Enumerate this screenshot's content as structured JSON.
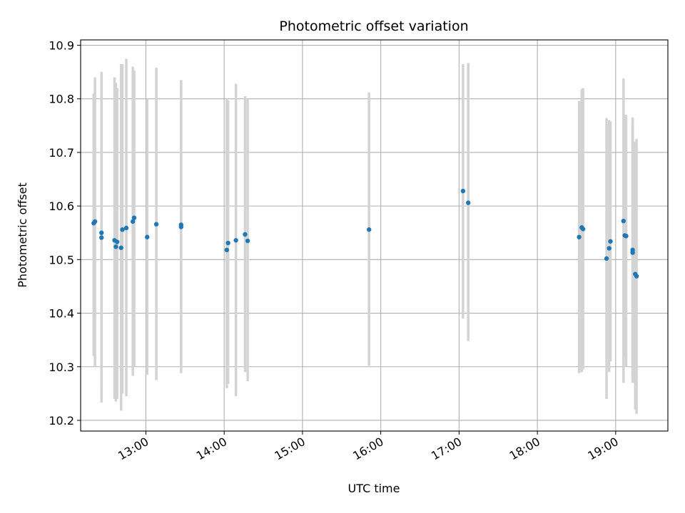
{
  "chart_data": {
    "type": "scatter",
    "title": "Photometric offset variation",
    "xlabel": "UTC time",
    "ylabel": "Photometric offset",
    "xlim": [
      "12:10",
      "19:40"
    ],
    "ylim": [
      10.18,
      10.91
    ],
    "x_ticks": [
      "13:00",
      "14:00",
      "15:00",
      "16:00",
      "17:00",
      "18:00",
      "19:00"
    ],
    "y_ticks": [
      "10.2",
      "10.3",
      "10.4",
      "10.5",
      "10.6",
      "10.7",
      "10.8",
      "10.9"
    ],
    "grid": true,
    "colors": {
      "points": "#1f77b4",
      "error_bars": "#d3d3d3"
    },
    "points": [
      {
        "x": "12:20",
        "y": 10.568,
        "ylow": 10.32,
        "yhigh": 10.81
      },
      {
        "x": "12:21",
        "y": 10.571,
        "ylow": 10.3,
        "yhigh": 10.84
      },
      {
        "x": "12:26",
        "y": 10.55,
        "ylow": 10.26,
        "yhigh": 10.85
      },
      {
        "x": "12:26",
        "y": 10.541,
        "ylow": 10.233,
        "yhigh": 10.85
      },
      {
        "x": "12:36",
        "y": 10.536,
        "ylow": 10.24,
        "yhigh": 10.84
      },
      {
        "x": "12:37",
        "y": 10.524,
        "ylow": 10.235,
        "yhigh": 10.83
      },
      {
        "x": "12:38",
        "y": 10.533,
        "ylow": 10.24,
        "yhigh": 10.82
      },
      {
        "x": "12:41",
        "y": 10.522,
        "ylow": 10.218,
        "yhigh": 10.865
      },
      {
        "x": "12:42",
        "y": 10.556,
        "ylow": 10.25,
        "yhigh": 10.865
      },
      {
        "x": "12:45",
        "y": 10.559,
        "ylow": 10.245,
        "yhigh": 10.875
      },
      {
        "x": "12:50",
        "y": 10.571,
        "ylow": 10.283,
        "yhigh": 10.86
      },
      {
        "x": "12:51",
        "y": 10.578,
        "ylow": 10.3,
        "yhigh": 10.853
      },
      {
        "x": "13:01",
        "y": 10.542,
        "ylow": 10.285,
        "yhigh": 10.8
      },
      {
        "x": "13:08",
        "y": 10.566,
        "ylow": 10.275,
        "yhigh": 10.858
      },
      {
        "x": "13:27",
        "y": 10.561,
        "ylow": 10.288,
        "yhigh": 10.835
      },
      {
        "x": "13:27",
        "y": 10.565,
        "ylow": 10.295,
        "yhigh": 10.835
      },
      {
        "x": "14:02",
        "y": 10.518,
        "ylow": 10.26,
        "yhigh": 10.8
      },
      {
        "x": "14:03",
        "y": 10.531,
        "ylow": 10.268,
        "yhigh": 10.797
      },
      {
        "x": "14:09",
        "y": 10.536,
        "ylow": 10.245,
        "yhigh": 10.828
      },
      {
        "x": "14:16",
        "y": 10.547,
        "ylow": 10.29,
        "yhigh": 10.805
      },
      {
        "x": "14:18",
        "y": 10.535,
        "ylow": 10.273,
        "yhigh": 10.8
      },
      {
        "x": "15:51",
        "y": 10.556,
        "ylow": 10.302,
        "yhigh": 10.812
      },
      {
        "x": "17:03",
        "y": 10.628,
        "ylow": 10.39,
        "yhigh": 10.865
      },
      {
        "x": "17:07",
        "y": 10.606,
        "ylow": 10.348,
        "yhigh": 10.867
      },
      {
        "x": "18:32",
        "y": 10.542,
        "ylow": 10.288,
        "yhigh": 10.796
      },
      {
        "x": "18:34",
        "y": 10.56,
        "ylow": 10.29,
        "yhigh": 10.818
      },
      {
        "x": "18:35",
        "y": 10.557,
        "ylow": 10.295,
        "yhigh": 10.82
      },
      {
        "x": "18:53",
        "y": 10.502,
        "ylow": 10.24,
        "yhigh": 10.764
      },
      {
        "x": "18:55",
        "y": 10.521,
        "ylow": 10.29,
        "yhigh": 10.76
      },
      {
        "x": "18:56",
        "y": 10.534,
        "ylow": 10.31,
        "yhigh": 10.758
      },
      {
        "x": "19:06",
        "y": 10.572,
        "ylow": 10.27,
        "yhigh": 10.838
      },
      {
        "x": "19:07",
        "y": 10.545,
        "ylow": 10.32,
        "yhigh": 10.77
      },
      {
        "x": "19:08",
        "y": 10.544,
        "ylow": 10.3,
        "yhigh": 10.77
      },
      {
        "x": "19:13",
        "y": 10.513,
        "ylow": 10.275,
        "yhigh": 10.765
      },
      {
        "x": "19:13",
        "y": 10.518,
        "ylow": 10.27,
        "yhigh": 10.755
      },
      {
        "x": "19:15",
        "y": 10.473,
        "ylow": 10.22,
        "yhigh": 10.72
      },
      {
        "x": "19:16",
        "y": 10.469,
        "ylow": 10.212,
        "yhigh": 10.725
      }
    ]
  }
}
